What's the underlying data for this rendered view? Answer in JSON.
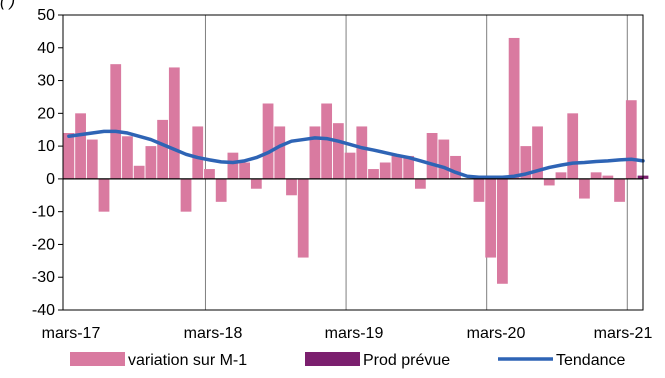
{
  "chart_data": {
    "type": "bar",
    "title_fragment": "(                          )",
    "ylim": [
      -40,
      50
    ],
    "yticks": [
      -40,
      -30,
      -20,
      -10,
      0,
      10,
      20,
      30,
      40,
      50
    ],
    "x_tick_labels": [
      "mars-17",
      "mars-18",
      "mars-19",
      "mars-20",
      "mars-21"
    ],
    "grid": "vertical lines at each March, box frame",
    "legend_position": "bottom",
    "colors": {
      "bars": "#d97aa0",
      "prod": "#7b1f6e",
      "trend": "#2e64b5"
    },
    "series": [
      {
        "name": "variation sur M-1",
        "type": "bar",
        "values": [
          14,
          20,
          12,
          -10,
          35,
          13,
          4,
          10,
          18,
          34,
          -10,
          16,
          3,
          -7,
          8,
          5,
          -3,
          23,
          16,
          -5,
          -24,
          16,
          23,
          17,
          8,
          16,
          3,
          5,
          7,
          7,
          -3,
          14,
          12,
          7,
          0,
          -7,
          -24,
          -32,
          43,
          10,
          16,
          -2,
          2,
          20,
          -6,
          2,
          1,
          -7,
          24
        ]
      },
      {
        "name": "Prod prévue",
        "type": "bar",
        "values": [
          null,
          null,
          null,
          null,
          null,
          null,
          null,
          null,
          null,
          null,
          null,
          null,
          null,
          null,
          null,
          null,
          null,
          null,
          null,
          null,
          null,
          null,
          null,
          null,
          null,
          null,
          null,
          null,
          null,
          null,
          null,
          null,
          null,
          null,
          null,
          null,
          null,
          null,
          null,
          null,
          null,
          null,
          null,
          null,
          null,
          null,
          null,
          null,
          null,
          1
        ]
      },
      {
        "name": "Tendance",
        "type": "line",
        "values": [
          13,
          13.5,
          14,
          14.5,
          14.5,
          14,
          13,
          12,
          10.5,
          9,
          7.5,
          6.5,
          5.8,
          5.2,
          5,
          5.5,
          6.5,
          8,
          10,
          11.5,
          12,
          12.5,
          12.3,
          11.5,
          10.5,
          9.5,
          8.8,
          8,
          7.2,
          6.5,
          5.5,
          4.5,
          3.5,
          2,
          0.8,
          0.5,
          0.5,
          0.5,
          0.8,
          1.5,
          2.5,
          3.5,
          4.2,
          4.8,
          5,
          5.3,
          5.5,
          5.8,
          6,
          5.5
        ]
      }
    ]
  },
  "legend": {
    "items": [
      {
        "label": "variation sur M-1",
        "symbol": "bar",
        "color": "#d97aa0"
      },
      {
        "label": "Prod prévue",
        "symbol": "bar",
        "color": "#7b1f6e"
      },
      {
        "label": "Tendance",
        "symbol": "line",
        "color": "#2e64b5"
      }
    ]
  }
}
